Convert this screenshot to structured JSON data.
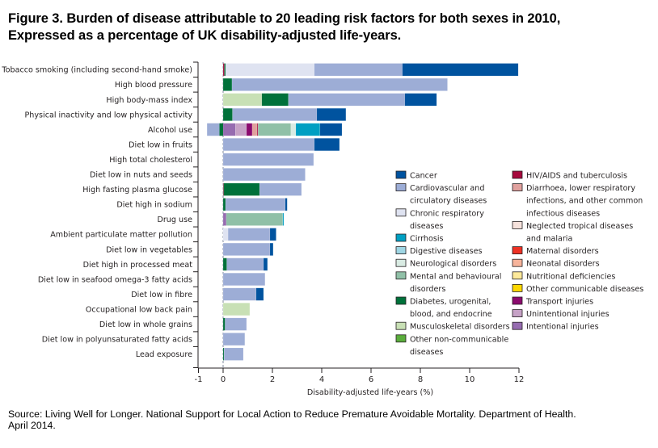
{
  "figure": {
    "title_line1": "Figure 3. Burden of disease attributable to 20 leading risk factors for both sexes in 2010,",
    "title_line2": "Expressed as a percentage of UK disability-adjusted life-years.",
    "source_line1": "Source: Living Well for Longer. National Support for Local Action to Reduce Premature Avoidable Mortality. Department of Health.",
    "source_line2": "April 2014."
  },
  "chart_data": {
    "type": "bar",
    "orientation": "horizontal",
    "stacked": true,
    "title": "Burden of disease attributable to 20 leading risk factors for both sexes in 2010",
    "xlabel": "Disability-adjusted life-years (%)",
    "ylabel": "",
    "xlim": [
      -1,
      12
    ],
    "xticks": [
      -1,
      0,
      2,
      4,
      6,
      8,
      10,
      12
    ],
    "grid": false,
    "legend_position": "bottom-right",
    "causes": [
      {
        "key": "cancer",
        "label": [
          "Cancer"
        ],
        "color": "#00539f"
      },
      {
        "key": "cardio",
        "label": [
          "Cardiovascular and",
          "circulatory diseases"
        ],
        "color": "#9dadd6"
      },
      {
        "key": "resp",
        "label": [
          "Chronic respiratory",
          "diseases"
        ],
        "color": "#dfe3f1"
      },
      {
        "key": "cirrhosis",
        "label": [
          "Cirrhosis"
        ],
        "color": "#009fc2"
      },
      {
        "key": "digestive",
        "label": [
          "Digestive diseases"
        ],
        "color": "#9fd6e4"
      },
      {
        "key": "neuro",
        "label": [
          "Neurological disorders"
        ],
        "color": "#d9ebe3"
      },
      {
        "key": "mental",
        "label": [
          "Mental and behavioural",
          "disorders"
        ],
        "color": "#90c0a7"
      },
      {
        "key": "diabetes",
        "label": [
          "Diabetes, urogenital,",
          "blood, and endocrine"
        ],
        "color": "#00713a"
      },
      {
        "key": "musculo",
        "label": [
          "Musculoskeletal disorders"
        ],
        "color": "#c8e0b5"
      },
      {
        "key": "othernc",
        "label": [
          "Other non-communicable",
          "diseases"
        ],
        "color": "#5aad3c"
      },
      {
        "key": "hiv",
        "label": [
          "HIV/AIDS and tuberculosis"
        ],
        "color": "#a6093d"
      },
      {
        "key": "diarrhoea",
        "label": [
          "Diarrhoea, lower respiratory",
          "infections, and other common",
          "infectious diseases"
        ],
        "color": "#e0a19e"
      },
      {
        "key": "ntd",
        "label": [
          "Neglected tropical diseases",
          "and malaria"
        ],
        "color": "#f6e2dc"
      },
      {
        "key": "maternal",
        "label": [
          "Maternal disorders"
        ],
        "color": "#ee3124"
      },
      {
        "key": "neonatal",
        "label": [
          "Neonatal disorders"
        ],
        "color": "#f7b49b"
      },
      {
        "key": "nutrition",
        "label": [
          "Nutritional deficiencies"
        ],
        "color": "#fde99a"
      },
      {
        "key": "othercomm",
        "label": [
          "Other communicable diseases"
        ],
        "color": "#fcd700"
      },
      {
        "key": "transport",
        "label": [
          "Transport injuries"
        ],
        "color": "#8b0a6e"
      },
      {
        "key": "unintentional",
        "label": [
          "Unintentional injuries"
        ],
        "color": "#c6a2c6"
      },
      {
        "key": "intentional",
        "label": [
          "Intentional injuries"
        ],
        "color": "#966cb0"
      }
    ],
    "categories": [
      "Tobacco smoking (including second-hand smoke)",
      "High blood pressure",
      "High body-mass index",
      "Physical inactivity and low physical activity",
      "Alcohol use",
      "Diet low in fruits",
      "High total cholesterol",
      "Diet low in nuts and seeds",
      "High fasting plasma glucose",
      "Diet high in sodium",
      "Drug use",
      "Ambient particulate matter pollution",
      "Diet low in vegetables",
      "Diet high in processed meat",
      "Diet low in seafood omega-3 fatty acids",
      "Diet low in fibre",
      "Occupational low back pain",
      "Diet low in whole grains",
      "Diet low in polyunsaturated fatty acids",
      "Lead exposure"
    ],
    "bars": [
      {
        "negative": [],
        "positive": [
          [
            "hiv",
            0.05
          ],
          [
            "diabetes",
            0.05
          ],
          [
            "resp",
            3.6
          ],
          [
            "cardio",
            3.57
          ],
          [
            "cancer",
            4.7
          ]
        ]
      },
      {
        "negative": [],
        "positive": [
          [
            "diabetes",
            0.36
          ],
          [
            "cardio",
            8.74
          ]
        ]
      },
      {
        "negative": [],
        "positive": [
          [
            "musculo",
            1.57
          ],
          [
            "diabetes",
            1.08
          ],
          [
            "cardio",
            4.72
          ],
          [
            "cancer",
            1.29
          ]
        ]
      },
      {
        "negative": [],
        "positive": [
          [
            "diabetes",
            0.38
          ],
          [
            "cardio",
            3.42
          ],
          [
            "cancer",
            1.18
          ]
        ]
      },
      {
        "negative": [
          [
            "diabetes",
            -0.15
          ],
          [
            "cardio",
            -0.5
          ]
        ],
        "positive": [
          [
            "intentional",
            0.5
          ],
          [
            "unintentional",
            0.45
          ],
          [
            "transport",
            0.23
          ],
          [
            "diarrhoea",
            0.2
          ],
          [
            "hiv",
            0.04
          ],
          [
            "mental",
            1.33
          ],
          [
            "neuro",
            0.2
          ],
          [
            "cirrhosis",
            0.98
          ],
          [
            "cancer",
            0.89
          ]
        ]
      },
      {
        "negative": [],
        "positive": [
          [
            "cardio",
            3.7
          ],
          [
            "cancer",
            1.02
          ]
        ]
      },
      {
        "negative": [],
        "positive": [
          [
            "cardio",
            3.67
          ]
        ]
      },
      {
        "negative": [],
        "positive": [
          [
            "cardio",
            3.33
          ]
        ]
      },
      {
        "negative": [],
        "positive": [
          [
            "hiv",
            0.02
          ],
          [
            "diabetes",
            1.46
          ],
          [
            "cardio",
            1.7
          ]
        ]
      },
      {
        "negative": [],
        "positive": [
          [
            "diabetes",
            0.1
          ],
          [
            "cardio",
            2.42
          ],
          [
            "cancer",
            0.08
          ]
        ]
      },
      {
        "negative": [],
        "positive": [
          [
            "intentional",
            0.13
          ],
          [
            "mental",
            2.29
          ],
          [
            "cirrhosis",
            0.04
          ]
        ]
      },
      {
        "negative": [],
        "positive": [
          [
            "resp",
            0.2
          ],
          [
            "cardio",
            1.7
          ],
          [
            "cancer",
            0.25
          ]
        ]
      },
      {
        "negative": [],
        "positive": [
          [
            "cardio",
            1.9
          ],
          [
            "cancer",
            0.13
          ]
        ]
      },
      {
        "negative": [],
        "positive": [
          [
            "diabetes",
            0.15
          ],
          [
            "cardio",
            1.49
          ],
          [
            "cancer",
            0.16
          ]
        ]
      },
      {
        "negative": [],
        "positive": [
          [
            "cardio",
            1.7
          ]
        ]
      },
      {
        "negative": [],
        "positive": [
          [
            "cardio",
            1.34
          ],
          [
            "cancer",
            0.3
          ]
        ]
      },
      {
        "negative": [],
        "positive": [
          [
            "musculo",
            1.08
          ]
        ]
      },
      {
        "negative": [],
        "positive": [
          [
            "diabetes",
            0.08
          ],
          [
            "cardio",
            0.87
          ]
        ]
      },
      {
        "negative": [],
        "positive": [
          [
            "cardio",
            0.88
          ]
        ]
      },
      {
        "negative": [],
        "positive": [
          [
            "diabetes",
            0.04
          ],
          [
            "cardio",
            0.78
          ]
        ]
      }
    ]
  }
}
